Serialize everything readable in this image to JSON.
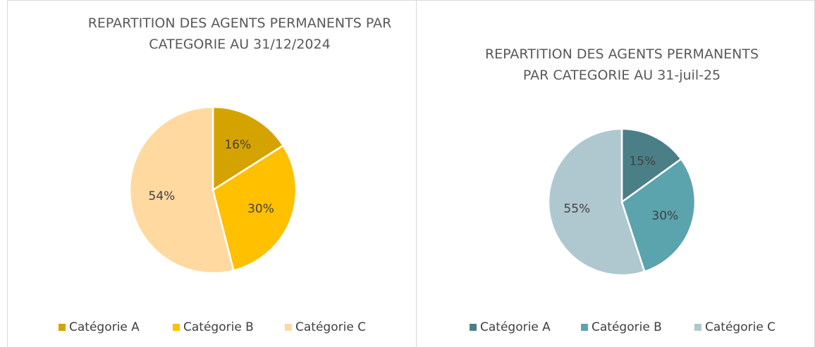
{
  "chart_data": [
    {
      "type": "pie",
      "title": "REPARTITION DES AGENTS PERMANENTS PAR CATEGORIE AU 31/12/2024",
      "categories": [
        "Catégorie A",
        "Catégorie B",
        "Catégorie C"
      ],
      "values": [
        16,
        30,
        54
      ],
      "value_labels": [
        "16%",
        "30%",
        "54%"
      ],
      "colors": [
        "#d5a300",
        "#ffc000",
        "#ffd9a0"
      ]
    },
    {
      "type": "pie",
      "title": "REPARTITION DES AGENTS PERMANENTS PAR CATEGORIE AU 31-juil-25",
      "categories": [
        "Catégorie A",
        "Catégorie B",
        "Catégorie C"
      ],
      "values": [
        15,
        30,
        55
      ],
      "value_labels": [
        "15%",
        "30%",
        "55%"
      ],
      "colors": [
        "#4b7f87",
        "#5ba4ae",
        "#afc8cf"
      ]
    }
  ]
}
